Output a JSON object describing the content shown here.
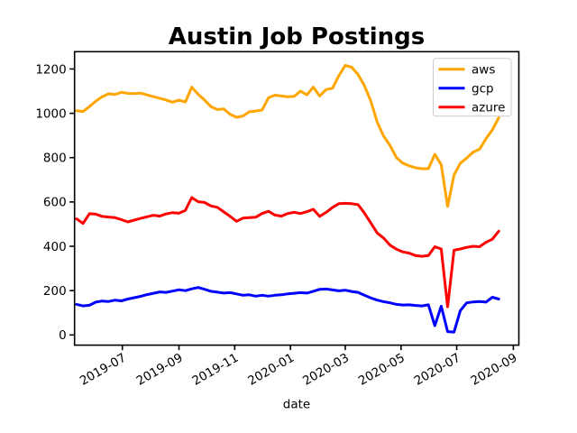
{
  "chart_data": {
    "type": "line",
    "title": "Austin Job Postings",
    "xlabel": "date",
    "ylabel": "",
    "grid": false,
    "legend_position": "upper right",
    "x_start_date": "2019-05-12",
    "x_end_date": "2020-08-16",
    "x_interval_days": 7,
    "x_tick_labels": [
      "2019-07",
      "2019-09",
      "2019-11",
      "2020-01",
      "2020-03",
      "2020-05",
      "2020-07",
      "2020-09"
    ],
    "x_tick_day_offsets": [
      50,
      112,
      173,
      234,
      294,
      355,
      416,
      478
    ],
    "x_tick_rotation_deg": 30,
    "xlim_days": [
      -2.3,
      484
    ],
    "y_ticks": [
      0,
      200,
      400,
      600,
      800,
      1000,
      1200
    ],
    "ylim": [
      -46,
      1278
    ],
    "series": [
      {
        "name": "aws",
        "color": "#FFA500",
        "values": [
          1012,
          1008,
          1030,
          1055,
          1075,
          1088,
          1085,
          1095,
          1090,
          1089,
          1091,
          1083,
          1075,
          1068,
          1060,
          1050,
          1060,
          1051,
          1118,
          1086,
          1060,
          1030,
          1017,
          1020,
          995,
          982,
          988,
          1007,
          1010,
          1015,
          1070,
          1082,
          1078,
          1075,
          1076,
          1100,
          1083,
          1118,
          1078,
          1107,
          1113,
          1170,
          1216,
          1208,
          1175,
          1125,
          1055,
          960,
          897,
          855,
          800,
          775,
          763,
          754,
          750,
          750,
          815,
          768,
          580,
          722,
          775,
          798,
          825,
          838,
          885,
          925,
          980
        ]
      },
      {
        "name": "gcp",
        "color": "#0000FF",
        "values": [
          138,
          131,
          134,
          148,
          153,
          151,
          157,
          154,
          162,
          168,
          174,
          182,
          188,
          194,
          192,
          198,
          204,
          200,
          208,
          214,
          206,
          197,
          193,
          189,
          191,
          185,
          179,
          181,
          175,
          179,
          175,
          179,
          181,
          185,
          188,
          191,
          189,
          197,
          206,
          207,
          203,
          199,
          202,
          196,
          192,
          179,
          167,
          157,
          150,
          145,
          138,
          135,
          136,
          133,
          131,
          136,
          42,
          130,
          15,
          13,
          110,
          145,
          149,
          151,
          148,
          170,
          162
        ]
      },
      {
        "name": "azure",
        "color": "#FF0000",
        "values": [
          524,
          503,
          547,
          545,
          535,
          532,
          529,
          520,
          510,
          518,
          526,
          533,
          540,
          536,
          546,
          552,
          549,
          562,
          620,
          601,
          598,
          582,
          576,
          555,
          535,
          513,
          527,
          529,
          531,
          548,
          558,
          541,
          536,
          548,
          553,
          548,
          556,
          567,
          535,
          553,
          575,
          592,
          594,
          592,
          588,
          550,
          505,
          460,
          437,
          405,
          387,
          375,
          369,
          358,
          355,
          358,
          398,
          388,
          127,
          382,
          388,
          395,
          400,
          398,
          418,
          432,
          468
        ]
      }
    ]
  },
  "colors": {
    "xlabel_color": "#8B0000",
    "axis_color": "#000000",
    "legend_border": "#CCCCCC",
    "background": "#FFFFFF"
  }
}
